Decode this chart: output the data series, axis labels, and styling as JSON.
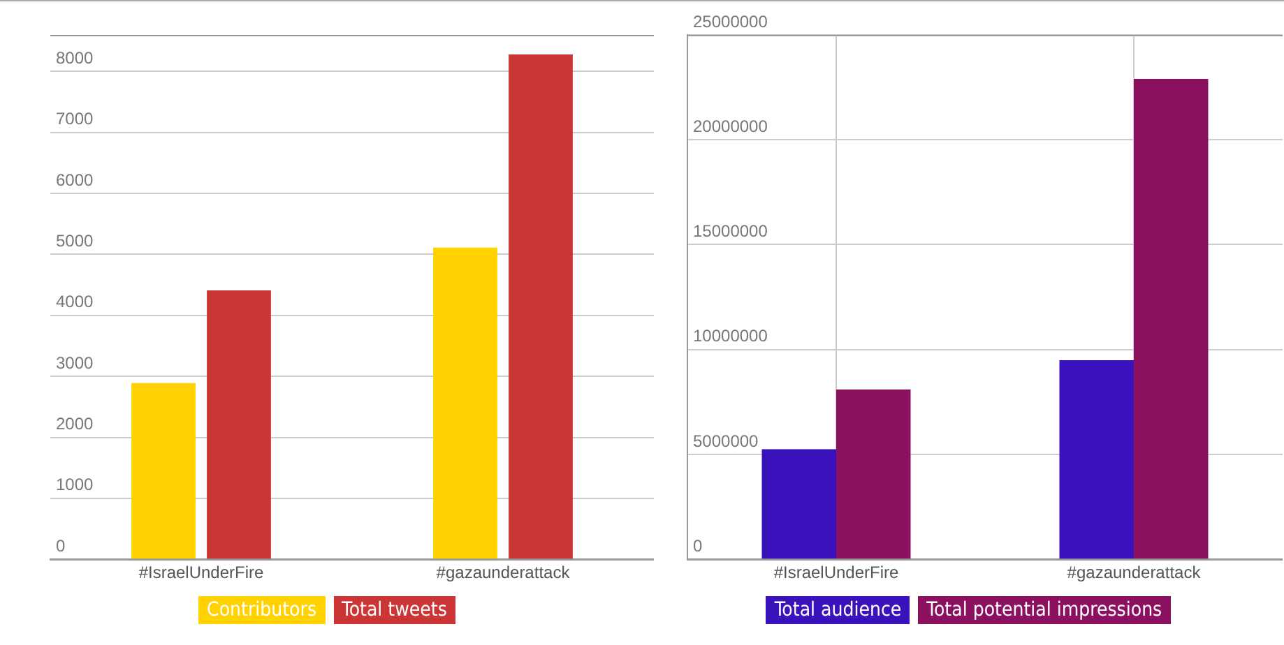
{
  "chart_data": [
    {
      "type": "bar",
      "categories": [
        "#IsraelUnderFire",
        "#gazaunderattack"
      ],
      "series": [
        {
          "name": "Contributors",
          "color": "#ffd200",
          "values": [
            2890,
            5110
          ]
        },
        {
          "name": "Total tweets",
          "color": "#cc3535",
          "values": [
            4410,
            8280
          ]
        }
      ],
      "ylim": [
        0,
        8600
      ],
      "yticks": [
        0,
        1000,
        2000,
        3000,
        4000,
        5000,
        6000,
        7000,
        8000
      ],
      "grid": "y",
      "legend": "bottom"
    },
    {
      "type": "bar",
      "categories": [
        "#IsraelUnderFire",
        "#gazaunderattack"
      ],
      "series": [
        {
          "name": "Total audience",
          "color": "#3a12bb",
          "values": [
            5250000,
            9490000
          ]
        },
        {
          "name": "Total potential impressions",
          "color": "#8b1160",
          "values": [
            8090000,
            22900000
          ]
        }
      ],
      "ylim": [
        0,
        25000000
      ],
      "yticks": [
        0,
        5000000,
        10000000,
        15000000,
        20000000,
        25000000
      ],
      "grid": true,
      "legend": "bottom"
    }
  ]
}
